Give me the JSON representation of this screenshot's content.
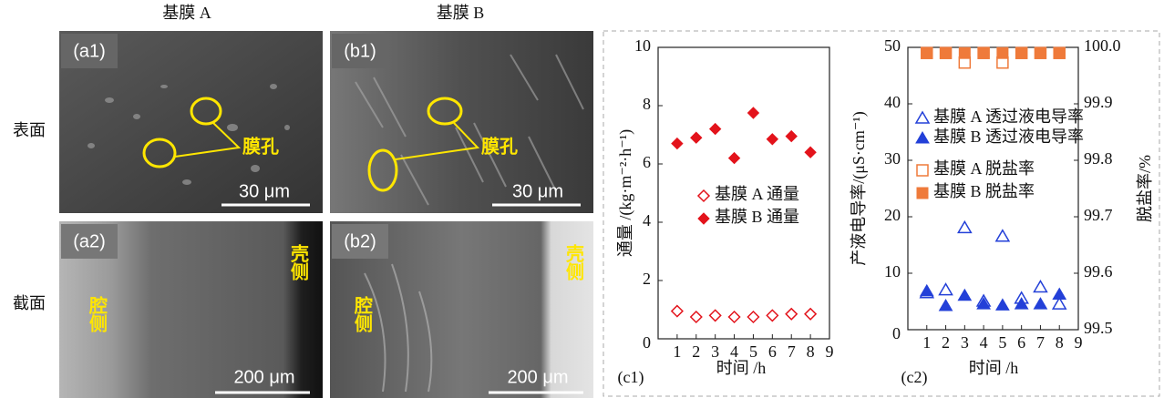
{
  "figure": {
    "column_headers": [
      "基膜 A",
      "基膜 B"
    ],
    "row_headers": [
      "表面",
      "截面"
    ],
    "panels": [
      {
        "label": "(a1)",
        "pore": "膜孔",
        "scale": "30 μm"
      },
      {
        "label": "(b1)",
        "pore": "膜孔",
        "scale": "30 μm"
      },
      {
        "label": "(a2)",
        "lumen": "腔侧",
        "shell": "壳侧",
        "scale": "200 μm"
      },
      {
        "label": "(b2)",
        "lumen": "腔侧",
        "shell": "壳侧",
        "scale": "200 μm"
      }
    ]
  },
  "chart_data": [
    {
      "type": "scatter",
      "label": "(c1)",
      "xlabel": "时间 /h",
      "ylabel": "通量 /(kg·m⁻²·h⁻¹)",
      "x": [
        1,
        2,
        3,
        4,
        5,
        6,
        7,
        8
      ],
      "xlim": [
        0,
        9
      ],
      "xticks": [
        1,
        2,
        3,
        4,
        5,
        6,
        7,
        8,
        9
      ],
      "ylim": [
        0,
        10
      ],
      "yticks": [
        0,
        2,
        4,
        6,
        8,
        10
      ],
      "series": [
        {
          "name": "基膜 A 通量",
          "color": "#e3131b",
          "marker": "diamond-open",
          "values": [
            0.95,
            0.75,
            0.8,
            0.75,
            0.75,
            0.8,
            0.85,
            0.85
          ]
        },
        {
          "name": "基膜 B 通量",
          "color": "#e3131b",
          "marker": "diamond",
          "values": [
            6.7,
            6.9,
            7.2,
            6.2,
            7.75,
            6.85,
            6.95,
            6.4
          ]
        }
      ]
    },
    {
      "type": "scatter",
      "label": "(c2)",
      "xlabel": "时间 /h",
      "ylabel": "产液电导率/(μS·cm⁻¹)",
      "y2label": "脱盐率/%",
      "x": [
        1,
        2,
        3,
        4,
        5,
        6,
        7,
        8
      ],
      "xlim": [
        0,
        9
      ],
      "xticks": [
        1,
        2,
        3,
        4,
        5,
        6,
        7,
        8,
        9
      ],
      "ylim": [
        0,
        50
      ],
      "yticks": [
        0,
        10,
        20,
        30,
        40,
        50
      ],
      "y2lim": [
        99.5,
        100
      ],
      "y2ticks": [
        99.5,
        99.6,
        99.7,
        99.8,
        99.9,
        {
          "value": 100,
          "label": "100.0"
        }
      ],
      "series": [
        {
          "name": "基膜 A 透过液电导率",
          "color": "#2340d8",
          "marker": "triangle-open",
          "values": [
            6.5,
            7,
            18,
            5,
            16.5,
            5.5,
            7.5,
            4.5
          ]
        },
        {
          "name": "基膜 B 透过液电导率",
          "color": "#2340d8",
          "marker": "triangle",
          "values": [
            6.8,
            4.2,
            6,
            4.5,
            4.3,
            4.5,
            4.5,
            6.2
          ]
        },
        {
          "name": "基膜 A 脱盐率",
          "color": "#ef7a3a",
          "marker": "square-open",
          "axis": "y2",
          "values": [
            99.99,
            99.99,
            99.973,
            99.99,
            99.973,
            99.99,
            99.99,
            99.99
          ]
        },
        {
          "name": "基膜 B 脱盐率",
          "color": "#ef7a3a",
          "marker": "square",
          "axis": "y2",
          "values": [
            99.99,
            99.99,
            99.99,
            99.99,
            99.99,
            99.99,
            99.99,
            99.99
          ]
        }
      ]
    }
  ]
}
